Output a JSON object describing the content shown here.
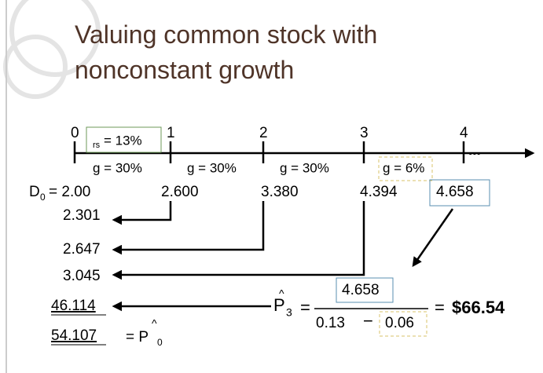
{
  "header": {
    "title_line1": "Valuing common stock with",
    "title_line2": "nonconstant growth"
  },
  "timeline": {
    "periods": [
      "0",
      "1",
      "2",
      "3",
      "4"
    ],
    "continuation": "...",
    "rate": {
      "symbol": "rs",
      "value": "= 13%"
    },
    "growth": [
      "g = 30%",
      "g = 30%",
      "g = 30%",
      "g = 6%"
    ]
  },
  "dividends": {
    "d0_symbol": "D",
    "d0_subscript": "0",
    "d0_value": "= 2.00",
    "values": [
      "2.600",
      "3.380",
      "4.394",
      "4.658"
    ]
  },
  "present_values": [
    "2.301",
    "2.647",
    "3.045",
    "46.114",
    "54.107"
  ],
  "price_today": {
    "equals": "= P",
    "hat": "^",
    "subscript": "0"
  },
  "terminal": {
    "symbol": "P",
    "hat": "^",
    "subscript": "3",
    "equals": "=",
    "numerator": "4.658",
    "denominator_left": "0.13",
    "minus": "−",
    "denominator_right": "0.06",
    "result_equals": "=",
    "result": "$66.54"
  }
}
